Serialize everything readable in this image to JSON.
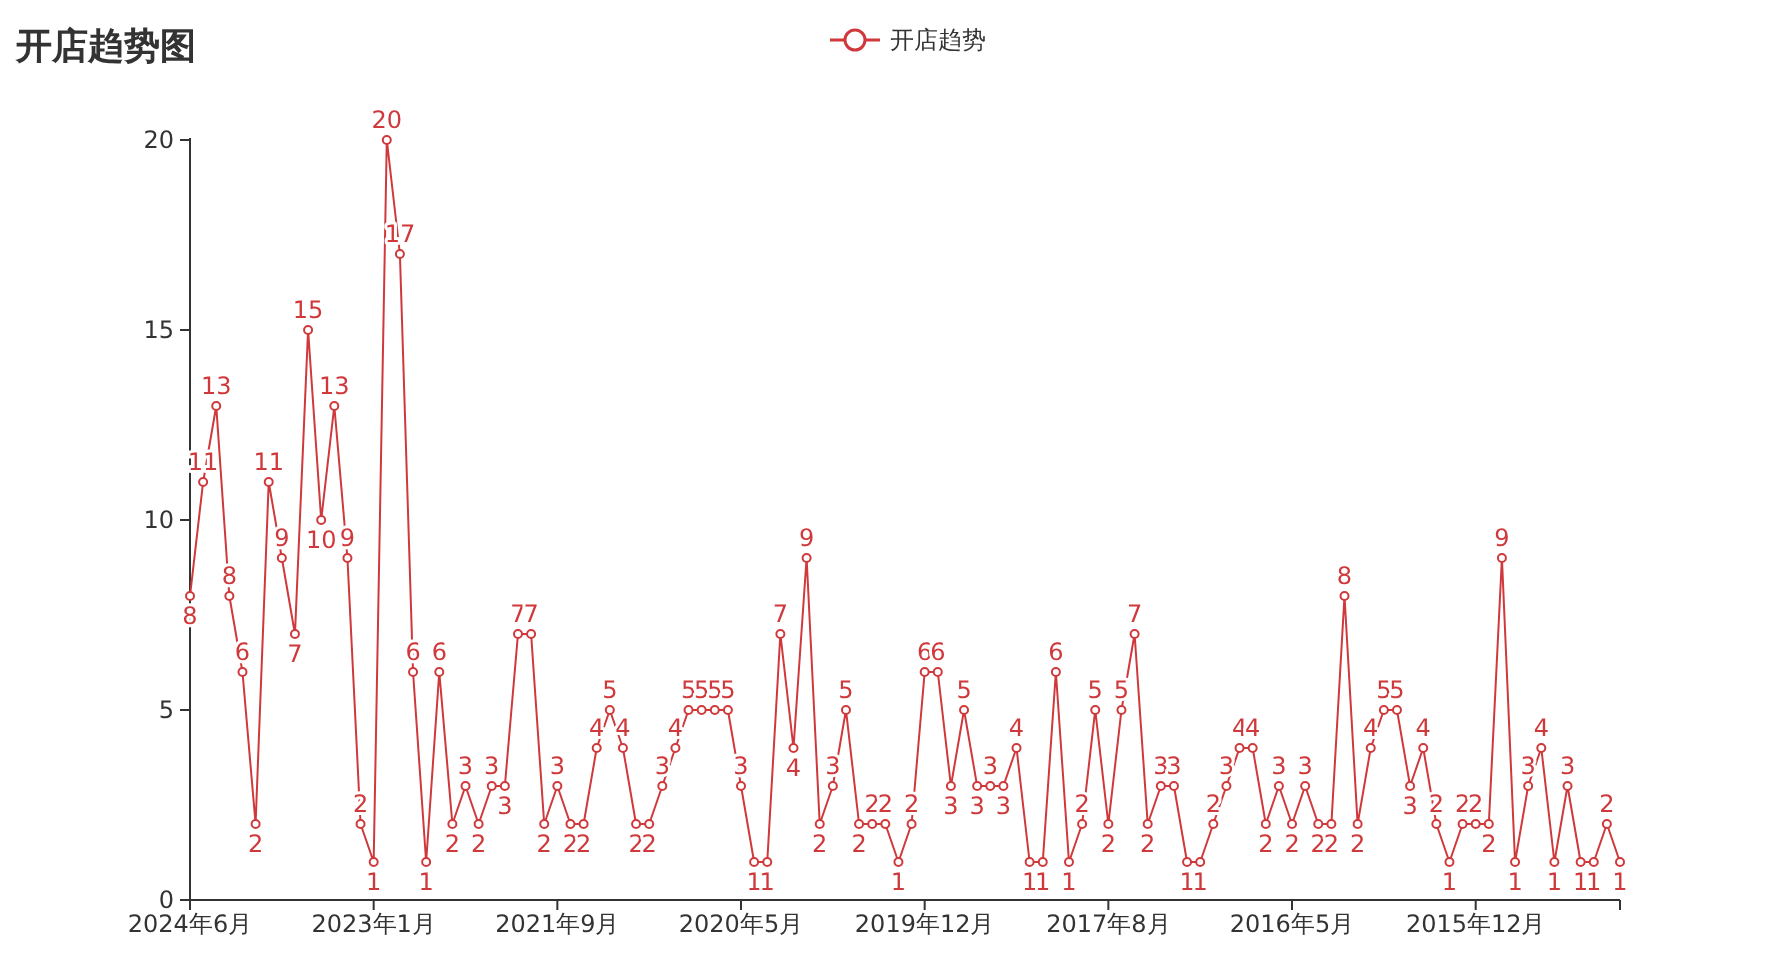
{
  "chart_data": {
    "type": "line",
    "title": "开店趋势图",
    "categories": [
      "2024年6月",
      null,
      null,
      null,
      null,
      null,
      null,
      null,
      null,
      null,
      null,
      null,
      null,
      null,
      "2023年1月",
      null,
      null,
      null,
      null,
      null,
      null,
      null,
      null,
      null,
      null,
      null,
      null,
      null,
      "2021年9月",
      null,
      null,
      null,
      null,
      null,
      null,
      null,
      null,
      null,
      null,
      null,
      null,
      null,
      "2020年5月",
      null,
      null,
      null,
      null,
      null,
      null,
      null,
      null,
      null,
      null,
      null,
      null,
      null,
      "2019年12月",
      null,
      null,
      null,
      null,
      null,
      null,
      null,
      null,
      null,
      null,
      null,
      null,
      null,
      "2017年8月",
      null,
      null,
      null,
      null,
      null,
      null,
      null,
      null,
      null,
      null,
      null,
      null,
      null,
      "2016年5月",
      null,
      null,
      null,
      null,
      null,
      null,
      null,
      null,
      null,
      null,
      null,
      null,
      null,
      "2015年12月",
      null,
      null,
      null,
      null,
      null,
      null,
      null,
      null,
      null,
      null,
      null
    ],
    "series": [
      {
        "name": "开店趋势",
        "color": "#d0393b",
        "values": [
          8,
          11,
          13,
          8,
          6,
          2,
          11,
          9,
          7,
          15,
          10,
          13,
          9,
          2,
          1,
          20,
          17,
          6,
          1,
          6,
          2,
          3,
          2,
          3,
          3,
          7,
          7,
          2,
          3,
          2,
          2,
          4,
          5,
          4,
          2,
          2,
          3,
          4,
          5,
          5,
          5,
          5,
          3,
          1,
          1,
          7,
          4,
          9,
          2,
          3,
          5,
          2,
          2,
          2,
          1,
          2,
          6,
          6,
          3,
          5,
          3,
          3,
          3,
          4,
          1,
          1,
          6,
          1,
          2,
          5,
          2,
          5,
          7,
          2,
          3,
          3,
          1,
          1,
          2,
          3,
          4,
          4,
          2,
          3,
          2,
          3,
          2,
          2,
          8,
          2,
          4,
          5,
          5,
          3,
          4,
          2,
          1,
          2,
          2,
          2,
          9,
          1,
          3,
          4,
          1,
          3,
          1,
          1,
          2,
          1
        ]
      }
    ],
    "ylim": [
      0,
      20
    ],
    "yticks": [
      0,
      5,
      10,
      15,
      20
    ],
    "legend": "top",
    "marker": "circle",
    "line_style": "solid",
    "data_labels": true
  }
}
